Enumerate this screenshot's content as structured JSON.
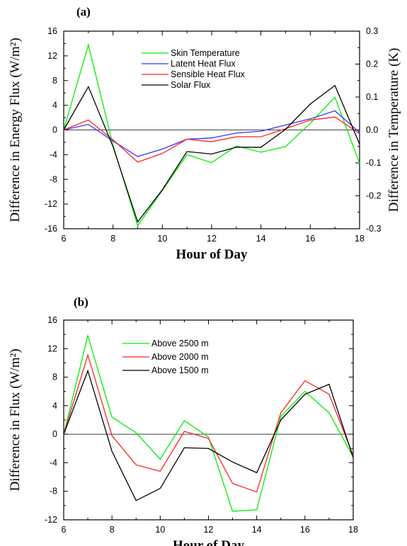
{
  "chart_data": [
    {
      "type": "line",
      "panel_label": "(a)",
      "xlabel": "Hour of Day",
      "ylabel_left": "Difference in Energy Flux (W/m²)",
      "ylabel_right": "Difference in Temperature (K)",
      "xlim": [
        6,
        18
      ],
      "ylim": [
        -16,
        16
      ],
      "ylim_right": [
        -0.3,
        0.3
      ],
      "x_ticks": [
        "6",
        "8",
        "10",
        "12",
        "14",
        "16",
        "18"
      ],
      "y_ticks": [
        "16",
        "12",
        "8",
        "4",
        "0",
        "-4",
        "-8",
        "-12",
        "-16"
      ],
      "y_ticks_right": [
        "0.3",
        "0.2",
        "0.1",
        "0.0",
        "-0.1",
        "-0.2",
        "-0.3"
      ],
      "legend_position": "upper-center",
      "x": [
        6,
        7,
        8,
        9,
        10,
        11,
        12,
        13,
        14,
        15,
        16,
        17,
        18
      ],
      "series": [
        {
          "name": "Skin Temperature",
          "color": "#00ee00",
          "values": [
            0,
            13.8,
            -2.5,
            -15.5,
            -9.8,
            -4.0,
            -5.3,
            -2.6,
            -3.6,
            -2.7,
            1.1,
            5.3,
            -5.4
          ]
        },
        {
          "name": "Latent Heat Flux",
          "color": "#3333ff",
          "values": [
            0,
            0.9,
            -1.8,
            -4.3,
            -3.1,
            -1.5,
            -1.3,
            -0.5,
            -0.2,
            0.8,
            1.8,
            3.1,
            -0.4
          ]
        },
        {
          "name": "Sensible Heat Flux",
          "color": "#ff2222",
          "values": [
            0,
            1.6,
            -1.6,
            -5.2,
            -3.8,
            -1.5,
            -1.9,
            -1.1,
            -1.1,
            0.2,
            1.6,
            2.1,
            -0.6
          ]
        },
        {
          "name": "Solar Flux",
          "color": "#000000",
          "values": [
            0,
            7.0,
            -2.7,
            -14.9,
            -9.7,
            -3.5,
            -3.9,
            -2.8,
            -2.8,
            0.1,
            4.2,
            7.2,
            -2.3
          ]
        }
      ]
    },
    {
      "type": "line",
      "panel_label": "(b)",
      "xlabel": "Hour of Day",
      "ylabel_left": "Difference in Flux (W/m²)",
      "xlim": [
        6,
        18
      ],
      "ylim": [
        -12,
        16
      ],
      "x_ticks": [
        "6",
        "8",
        "10",
        "12",
        "14",
        "16",
        "18"
      ],
      "y_ticks": [
        "16",
        "12",
        "8",
        "4",
        "0",
        "-4",
        "-8",
        "-12"
      ],
      "legend_position": "upper-center",
      "x": [
        6,
        7,
        8,
        9,
        10,
        11,
        12,
        13,
        14,
        15,
        16,
        17,
        18
      ],
      "series": [
        {
          "name": "Above 2500 m",
          "color": "#00ee00",
          "values": [
            0,
            13.8,
            2.4,
            0.2,
            -3.5,
            1.9,
            -0.4,
            -10.8,
            -10.6,
            2.5,
            6.0,
            3.0,
            -3.2
          ]
        },
        {
          "name": "Above 2000 m",
          "color": "#ff2222",
          "values": [
            0,
            11.1,
            -0.2,
            -4.3,
            -5.2,
            0.4,
            -0.6,
            -6.9,
            -8.1,
            3.0,
            7.5,
            5.6,
            -3.0
          ]
        },
        {
          "name": "Above 1500 m",
          "color": "#000000",
          "values": [
            0,
            8.9,
            -2.4,
            -9.3,
            -7.6,
            -1.9,
            -2.0,
            -3.9,
            -5.4,
            2.0,
            5.6,
            7.0,
            -3.3
          ]
        }
      ]
    }
  ]
}
